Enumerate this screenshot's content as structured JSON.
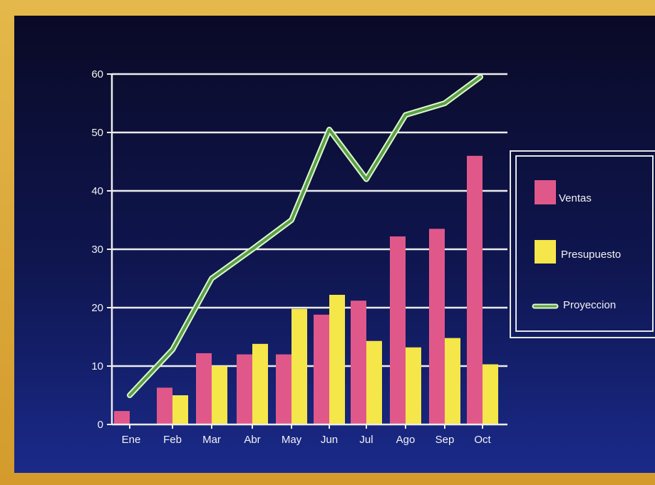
{
  "chart_data": {
    "type": "bar",
    "title": "",
    "xlabel": "",
    "ylabel": "",
    "categories": [
      "Ene",
      "Feb",
      "Mar",
      "Abr",
      "May",
      "Jun",
      "Jul",
      "Ago",
      "Sep",
      "Oct"
    ],
    "ylim": [
      0,
      60
    ],
    "yticks": [
      "0",
      "10",
      "20",
      "30",
      "40",
      "50",
      "60"
    ],
    "grid": true,
    "legend_position": "right",
    "series": [
      {
        "name": "Ventas",
        "kind": "bar",
        "color": "#e0588a",
        "values": [
          2.3,
          6.3,
          12.2,
          12.0,
          12.0,
          18.8,
          21.2,
          32.2,
          33.5,
          46.0
        ]
      },
      {
        "name": "Presupuesto",
        "kind": "bar",
        "color": "#f5e64a",
        "values": [
          0,
          5.0,
          10.0,
          13.8,
          19.8,
          22.2,
          14.3,
          13.2,
          14.8,
          10.3
        ]
      },
      {
        "name": "Proyeccion",
        "kind": "line",
        "color": "#5aa04a",
        "values": [
          5.0,
          12.8,
          25.0,
          30.0,
          35.0,
          50.5,
          42.0,
          53.0,
          55.0,
          59.5
        ]
      }
    ]
  }
}
